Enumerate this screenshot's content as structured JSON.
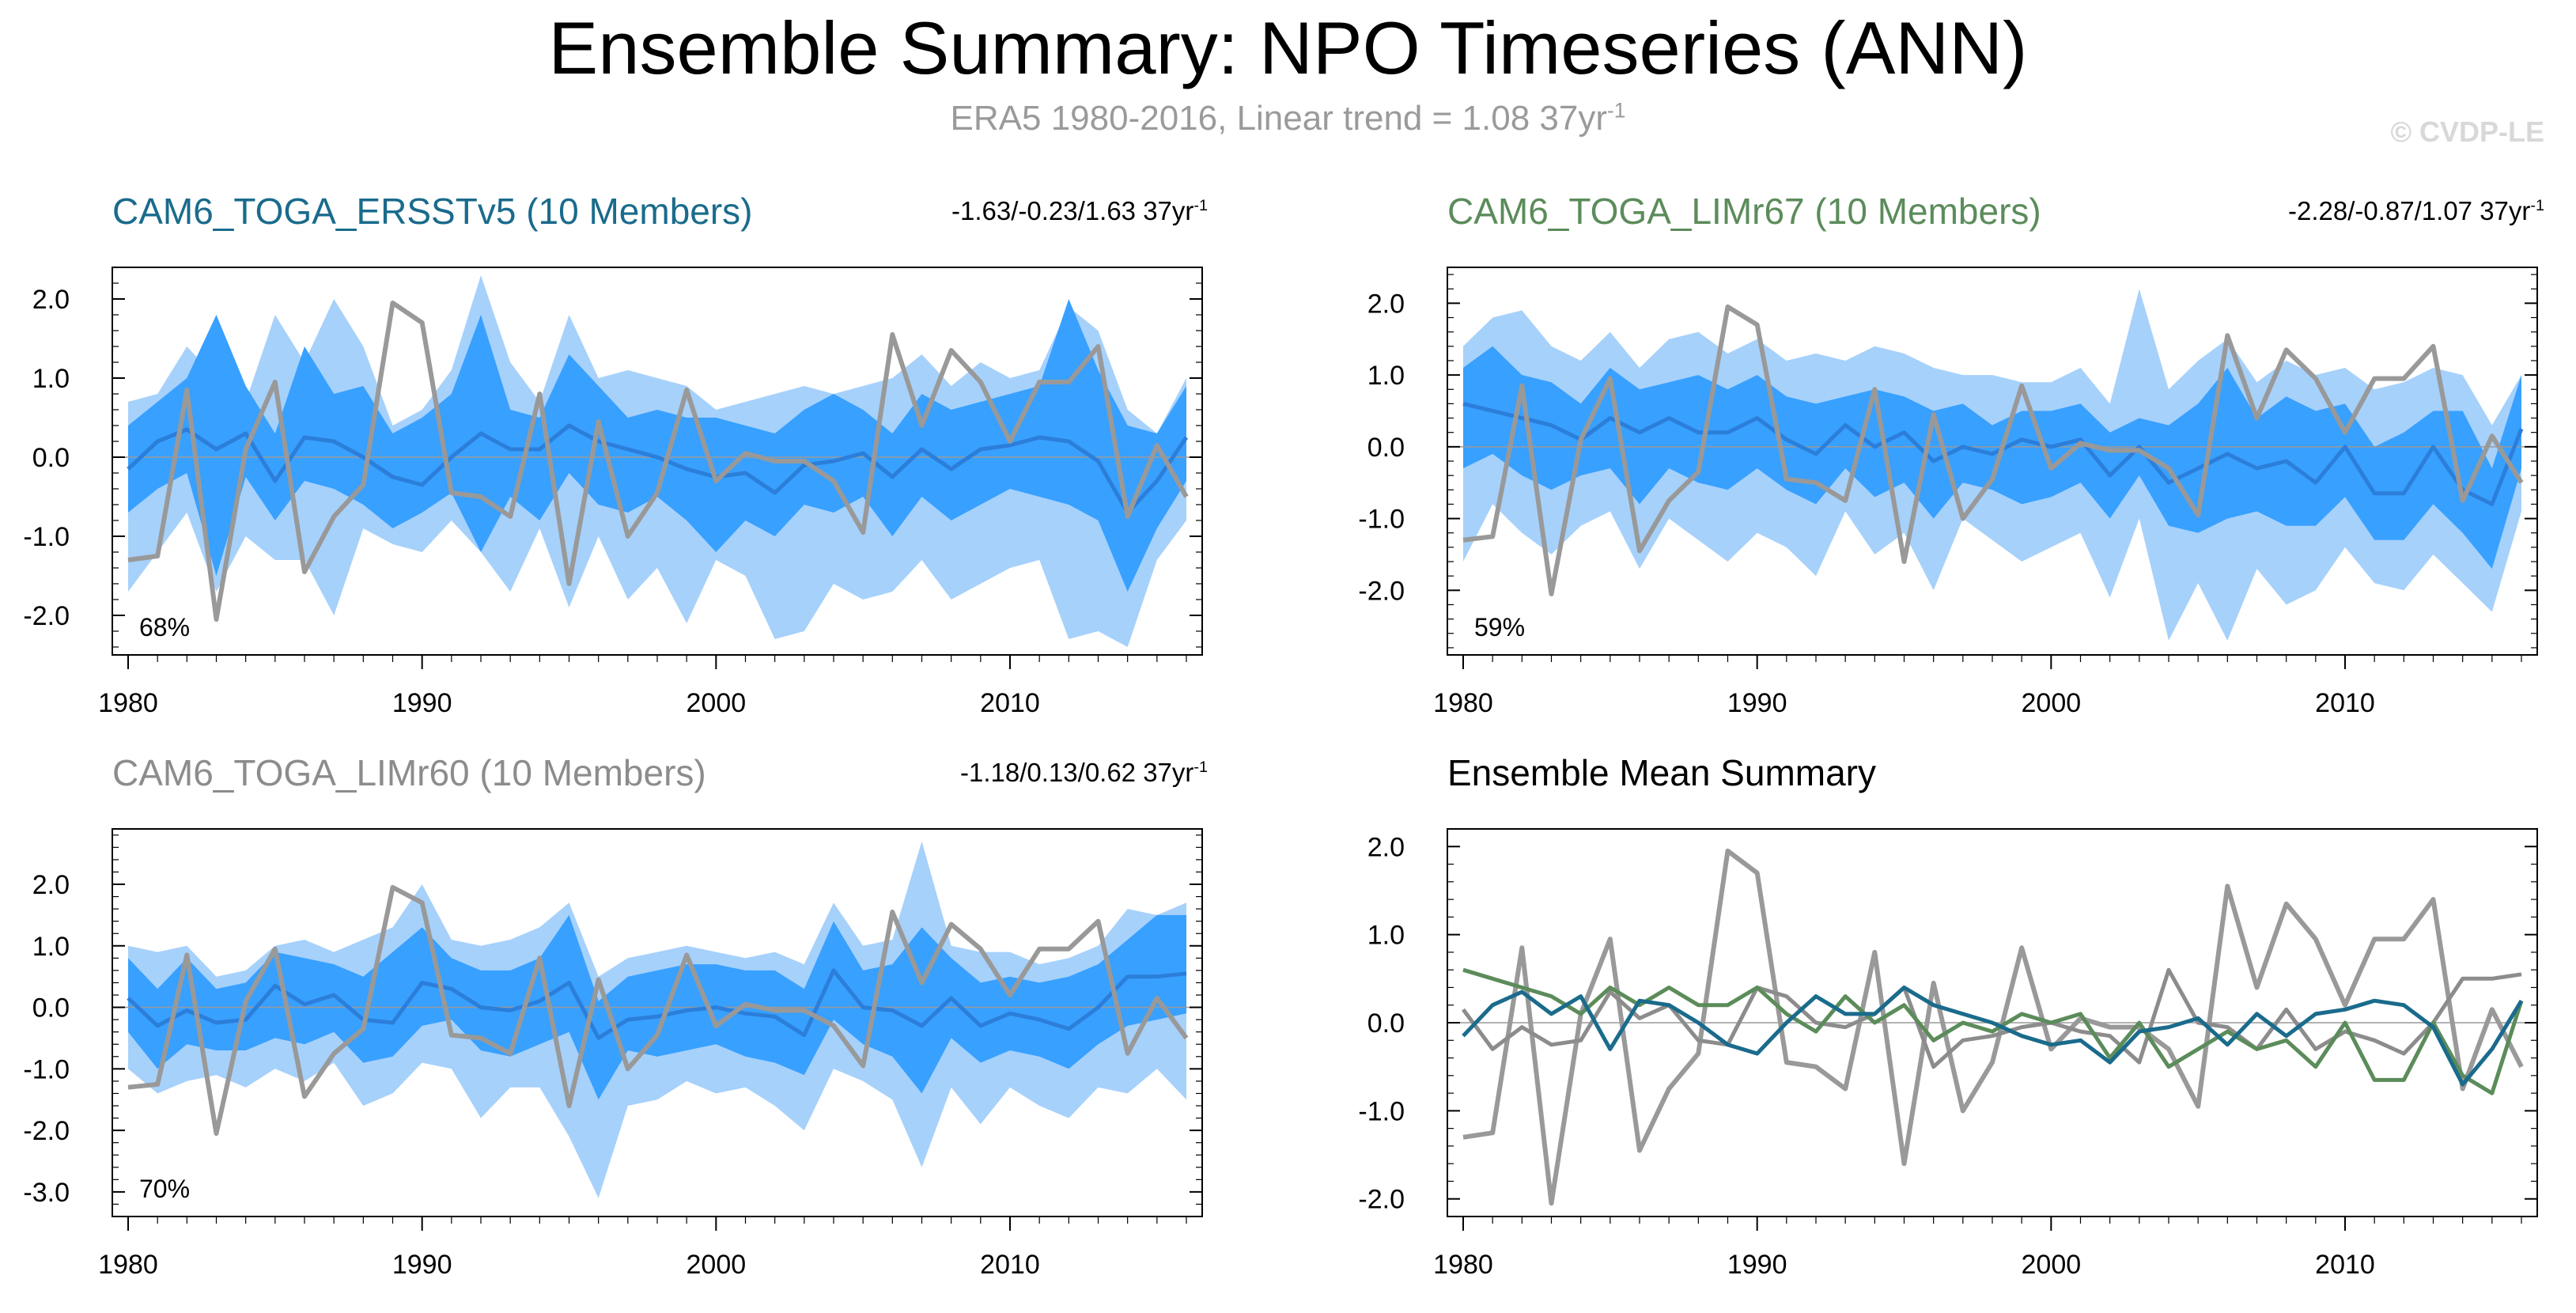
{
  "header": {
    "title": "Ensemble Summary: NPO Timeseries (ANN)",
    "subtitle_main": "ERA5 1980-2016, Linear trend = 1.08 37yr",
    "subtitle_sup": "-1",
    "credit": "© CVDP-LE"
  },
  "colors": {
    "outer_band": "#a6d1fb",
    "inner_band": "#38a0ff",
    "ens_mean_line": "#2b7ed9",
    "obs_line": "#999999",
    "ersst": "#1a6b8c",
    "limr67": "#5b8c5a",
    "limr60": "#8c8c8c"
  },
  "panels": [
    {
      "title": "CAM6_TOGA_ERSSTv5 (10 Members)",
      "trend": "-1.63/-0.23/1.63 37yr",
      "sup": "-1",
      "pct": "68%"
    },
    {
      "title": "CAM6_TOGA_LIMr67 (10 Members)",
      "trend": "-2.28/-0.87/1.07 37yr",
      "sup": "-1",
      "pct": "59%"
    },
    {
      "title": "CAM6_TOGA_LIMr60 (10 Members)",
      "trend": "-1.18/0.13/0.62 37yr",
      "sup": "-1",
      "pct": "70%"
    },
    {
      "title": "Ensemble Mean Summary",
      "trend": "",
      "sup": "",
      "pct": ""
    }
  ],
  "chart_data": [
    {
      "type": "area",
      "title": "CAM6_TOGA_ERSSTv5 (10 Members)",
      "x_start": 1980,
      "x_end": 2016,
      "xlim": [
        1980,
        2016
      ],
      "ylim": [
        -2.5,
        2.4
      ],
      "xticks": [
        "1980",
        "1990",
        "2000",
        "2010"
      ],
      "yticks": [
        "2.0",
        "1.0",
        "0.0",
        "-1.0",
        "-2.0"
      ],
      "ytick_values": [
        2,
        1,
        0,
        -1,
        -2
      ],
      "series": [
        {
          "name": "ERA5",
          "values": [
            -1.3,
            -1.25,
            0.85,
            -2.05,
            0.1,
            0.95,
            -1.45,
            -0.75,
            -0.35,
            1.95,
            1.7,
            -0.45,
            -0.5,
            -0.75,
            0.8,
            -1.6,
            0.45,
            -1.0,
            -0.45,
            0.85,
            -0.3,
            0.05,
            -0.05,
            -0.05,
            -0.3,
            -0.95,
            1.55,
            0.4,
            1.35,
            0.95,
            0.2,
            0.95,
            0.95,
            1.4,
            -0.75,
            0.15,
            -0.5
          ]
        },
        {
          "name": "Ensemble mean",
          "values": [
            -0.15,
            0.2,
            0.35,
            0.1,
            0.3,
            -0.3,
            0.25,
            0.2,
            0.0,
            -0.25,
            -0.35,
            0.0,
            0.3,
            0.1,
            0.1,
            0.4,
            0.2,
            0.1,
            0.0,
            -0.15,
            -0.25,
            -0.2,
            -0.45,
            -0.1,
            -0.05,
            0.05,
            -0.25,
            0.1,
            -0.15,
            0.1,
            0.15,
            0.25,
            0.2,
            -0.05,
            -0.7,
            -0.3,
            0.25
          ]
        },
        {
          "name": "Inner lower",
          "values": [
            -0.7,
            -0.4,
            -0.2,
            -1.5,
            -0.25,
            -0.8,
            -0.3,
            -0.4,
            -0.6,
            -0.9,
            -0.7,
            -0.45,
            -1.2,
            -0.5,
            -0.8,
            -0.2,
            -0.6,
            -0.7,
            -0.5,
            -0.8,
            -1.2,
            -0.8,
            -1.0,
            -0.6,
            -0.7,
            -0.5,
            -1.0,
            -0.5,
            -0.8,
            -0.6,
            -0.4,
            -0.5,
            -0.6,
            -0.8,
            -1.7,
            -0.9,
            -0.3
          ]
        },
        {
          "name": "Inner upper",
          "values": [
            0.4,
            0.7,
            1.0,
            1.8,
            0.9,
            0.3,
            1.4,
            0.8,
            0.9,
            0.3,
            0.5,
            0.8,
            1.8,
            0.6,
            0.5,
            1.3,
            0.9,
            0.5,
            0.6,
            0.5,
            0.5,
            0.4,
            0.3,
            0.6,
            0.8,
            0.6,
            0.3,
            0.8,
            0.6,
            0.7,
            0.8,
            0.9,
            2.0,
            1.1,
            0.4,
            0.3,
            0.9
          ]
        },
        {
          "name": "Outer lower",
          "values": [
            -1.7,
            -1.2,
            -0.7,
            -1.7,
            -1.0,
            -1.3,
            -1.3,
            -2.0,
            -0.9,
            -1.1,
            -1.2,
            -0.8,
            -1.2,
            -1.7,
            -0.9,
            -1.9,
            -1.0,
            -1.8,
            -1.4,
            -2.1,
            -1.3,
            -1.5,
            -2.3,
            -2.2,
            -1.6,
            -1.8,
            -1.7,
            -1.3,
            -1.8,
            -1.6,
            -1.4,
            -1.3,
            -2.3,
            -2.2,
            -2.4,
            -1.3,
            -0.8
          ]
        },
        {
          "name": "Outer upper",
          "values": [
            0.7,
            0.8,
            1.4,
            1.0,
            0.7,
            1.8,
            1.2,
            2.0,
            1.4,
            0.4,
            0.6,
            1.1,
            2.3,
            1.2,
            0.7,
            1.8,
            1.0,
            1.1,
            1.0,
            0.9,
            0.6,
            0.7,
            0.8,
            0.9,
            0.8,
            0.9,
            1.0,
            1.3,
            0.9,
            1.2,
            1.0,
            1.1,
            1.9,
            1.6,
            0.6,
            0.3,
            1.0
          ]
        }
      ]
    },
    {
      "type": "area",
      "title": "CAM6_TOGA_LIMr67 (10 Members)",
      "x_start": 1980,
      "x_end": 2016,
      "xlim": [
        1980,
        2016
      ],
      "ylim": [
        -2.9,
        2.5
      ],
      "xticks": [
        "1980",
        "1990",
        "2000",
        "2010"
      ],
      "yticks": [
        "2.0",
        "1.0",
        "0.0",
        "-1.0",
        "-2.0"
      ],
      "ytick_values": [
        2,
        1,
        0,
        -1,
        -2
      ],
      "series": [
        {
          "name": "ERA5",
          "values": [
            -1.3,
            -1.25,
            0.85,
            -2.05,
            0.1,
            0.95,
            -1.45,
            -0.75,
            -0.35,
            1.95,
            1.7,
            -0.45,
            -0.5,
            -0.75,
            0.8,
            -1.6,
            0.45,
            -1.0,
            -0.45,
            0.85,
            -0.3,
            0.05,
            -0.05,
            -0.05,
            -0.3,
            -0.95,
            1.55,
            0.4,
            1.35,
            0.95,
            0.2,
            0.95,
            0.95,
            1.4,
            -0.75,
            0.15,
            -0.5
          ]
        },
        {
          "name": "Ensemble mean",
          "values": [
            0.6,
            0.5,
            0.4,
            0.3,
            0.1,
            0.4,
            0.2,
            0.4,
            0.2,
            0.2,
            0.4,
            0.1,
            -0.1,
            0.3,
            0.0,
            0.2,
            -0.2,
            0.0,
            -0.1,
            0.1,
            0.0,
            0.1,
            -0.4,
            0.0,
            -0.5,
            -0.3,
            -0.1,
            -0.3,
            -0.2,
            -0.5,
            0.0,
            -0.65,
            -0.65,
            0.0,
            -0.6,
            -0.8,
            0.25
          ]
        },
        {
          "name": "Inner lower",
          "values": [
            -0.3,
            -0.1,
            -0.4,
            -0.6,
            -0.4,
            -0.3,
            -0.8,
            -0.3,
            -0.5,
            -0.6,
            -0.3,
            -0.6,
            -0.8,
            -0.3,
            -0.7,
            -0.5,
            -1.0,
            -0.5,
            -0.6,
            -0.8,
            -0.7,
            -0.5,
            -1.0,
            -0.4,
            -1.1,
            -1.2,
            -1.0,
            -0.9,
            -1.1,
            -1.1,
            -0.7,
            -1.3,
            -1.3,
            -0.8,
            -1.2,
            -1.7,
            -0.3
          ]
        },
        {
          "name": "Inner upper",
          "values": [
            1.1,
            1.4,
            1.0,
            0.9,
            0.6,
            1.1,
            0.8,
            0.9,
            1.0,
            0.8,
            1.0,
            0.7,
            0.6,
            0.7,
            0.8,
            0.7,
            0.5,
            0.6,
            0.3,
            0.5,
            0.5,
            0.6,
            0.2,
            0.4,
            0.3,
            0.6,
            1.1,
            0.4,
            0.7,
            0.5,
            0.6,
            0.0,
            0.2,
            0.5,
            0.5,
            -0.3,
            1.0
          ]
        },
        {
          "name": "Outer lower",
          "values": [
            -1.6,
            -0.8,
            -1.2,
            -1.5,
            -1.1,
            -0.9,
            -1.7,
            -1.0,
            -1.3,
            -1.6,
            -1.2,
            -1.4,
            -1.8,
            -0.9,
            -1.5,
            -1.2,
            -2.0,
            -1.0,
            -1.3,
            -1.6,
            -1.4,
            -1.2,
            -2.1,
            -1.0,
            -2.7,
            -1.9,
            -2.7,
            -1.7,
            -2.2,
            -2.0,
            -1.4,
            -1.9,
            -2.0,
            -1.5,
            -1.9,
            -2.3,
            -0.9
          ]
        },
        {
          "name": "Outer upper",
          "values": [
            1.4,
            1.8,
            1.9,
            1.4,
            1.2,
            1.6,
            1.1,
            1.5,
            1.6,
            1.3,
            1.5,
            1.2,
            1.3,
            1.2,
            1.4,
            1.3,
            1.1,
            1.0,
            1.0,
            0.9,
            0.9,
            1.1,
            0.6,
            2.2,
            0.8,
            1.2,
            1.5,
            0.9,
            1.2,
            1.0,
            1.1,
            0.8,
            0.9,
            1.1,
            1.0,
            0.3,
            1.0
          ]
        }
      ]
    },
    {
      "type": "area",
      "title": "CAM6_TOGA_LIMr60 (10 Members)",
      "x_start": 1980,
      "x_end": 2016,
      "xlim": [
        1980,
        2016
      ],
      "ylim": [
        -3.4,
        2.9
      ],
      "xticks": [
        "1980",
        "1990",
        "2000",
        "2010"
      ],
      "yticks": [
        "2.0",
        "1.0",
        "0.0",
        "-1.0",
        "-2.0",
        "-3.0"
      ],
      "ytick_values": [
        2,
        1,
        0,
        -1,
        -2,
        -3
      ],
      "series": [
        {
          "name": "ERA5",
          "values": [
            -1.3,
            -1.25,
            0.85,
            -2.05,
            0.1,
            0.95,
            -1.45,
            -0.75,
            -0.35,
            1.95,
            1.7,
            -0.45,
            -0.5,
            -0.75,
            0.8,
            -1.6,
            0.45,
            -1.0,
            -0.45,
            0.85,
            -0.3,
            0.05,
            -0.05,
            -0.05,
            -0.3,
            -0.95,
            1.55,
            0.4,
            1.35,
            0.95,
            0.2,
            0.95,
            0.95,
            1.4,
            -0.75,
            0.15,
            -0.5
          ]
        },
        {
          "name": "Ensemble mean",
          "values": [
            0.15,
            -0.3,
            -0.05,
            -0.25,
            -0.2,
            0.35,
            0.05,
            0.2,
            -0.2,
            -0.25,
            0.4,
            0.3,
            0.0,
            -0.05,
            0.1,
            0.4,
            -0.5,
            -0.2,
            -0.15,
            -0.05,
            0.0,
            -0.1,
            -0.15,
            -0.45,
            0.6,
            0.0,
            -0.05,
            -0.3,
            0.15,
            -0.3,
            -0.1,
            -0.2,
            -0.35,
            0.0,
            0.5,
            0.5,
            0.55
          ]
        },
        {
          "name": "Inner lower",
          "values": [
            -0.4,
            -1.0,
            -0.6,
            -0.7,
            -0.7,
            -0.5,
            -0.6,
            -0.4,
            -0.9,
            -0.8,
            -0.3,
            -0.2,
            -0.7,
            -0.8,
            -0.6,
            -0.4,
            -1.5,
            -0.7,
            -0.8,
            -0.7,
            -0.6,
            -0.8,
            -0.9,
            -1.1,
            -0.2,
            -0.6,
            -0.8,
            -1.4,
            -0.5,
            -0.9,
            -0.7,
            -0.8,
            -1.0,
            -0.6,
            -0.3,
            -0.2,
            -0.1
          ]
        },
        {
          "name": "Inner upper",
          "values": [
            0.8,
            0.3,
            0.8,
            0.3,
            0.4,
            0.9,
            0.8,
            0.7,
            0.5,
            0.9,
            1.3,
            0.8,
            0.6,
            0.6,
            0.8,
            1.5,
            0.1,
            0.5,
            0.6,
            0.7,
            0.7,
            0.6,
            0.6,
            0.3,
            1.4,
            0.6,
            0.7,
            1.3,
            0.8,
            0.4,
            0.5,
            0.4,
            0.5,
            0.7,
            1.1,
            1.5,
            1.5
          ]
        },
        {
          "name": "Outer lower",
          "values": [
            -1.0,
            -1.4,
            -1.2,
            -1.1,
            -1.3,
            -1.0,
            -1.2,
            -0.9,
            -1.6,
            -1.4,
            -0.9,
            -1.0,
            -1.8,
            -1.3,
            -1.3,
            -2.1,
            -3.1,
            -1.6,
            -1.5,
            -1.2,
            -1.4,
            -1.3,
            -1.6,
            -2.0,
            -1.0,
            -1.2,
            -1.5,
            -2.6,
            -1.3,
            -1.9,
            -1.3,
            -1.6,
            -1.8,
            -1.3,
            -1.4,
            -1.0,
            -1.5
          ]
        },
        {
          "name": "Outer upper",
          "values": [
            1.0,
            0.9,
            1.0,
            0.5,
            0.6,
            1.0,
            1.1,
            0.9,
            1.1,
            1.3,
            2.0,
            1.1,
            1.0,
            1.1,
            1.3,
            1.7,
            0.5,
            0.8,
            0.9,
            1.0,
            0.9,
            0.8,
            0.9,
            0.7,
            1.7,
            1.0,
            1.1,
            2.7,
            1.0,
            0.9,
            0.9,
            0.7,
            0.8,
            1.0,
            1.6,
            1.5,
            1.7
          ]
        }
      ]
    },
    {
      "type": "line",
      "title": "Ensemble Mean Summary",
      "x_start": 1980,
      "x_end": 2016,
      "xlim": [
        1980,
        2016
      ],
      "ylim": [
        -2.2,
        2.2
      ],
      "xticks": [
        "1980",
        "1990",
        "2000",
        "2010"
      ],
      "yticks": [
        "2.0",
        "1.0",
        "0.0",
        "-1.0",
        "-2.0"
      ],
      "ytick_values": [
        2,
        1,
        0,
        -1,
        -2
      ],
      "series": [
        {
          "name": "ERA5",
          "values": [
            -1.3,
            -1.25,
            0.85,
            -2.05,
            0.1,
            0.95,
            -1.45,
            -0.75,
            -0.35,
            1.95,
            1.7,
            -0.45,
            -0.5,
            -0.75,
            0.8,
            -1.6,
            0.45,
            -1.0,
            -0.45,
            0.85,
            -0.3,
            0.05,
            -0.05,
            -0.05,
            -0.3,
            -0.95,
            1.55,
            0.4,
            1.35,
            0.95,
            0.2,
            0.95,
            0.95,
            1.4,
            -0.75,
            0.15,
            -0.5
          ]
        },
        {
          "name": "CAM6_TOGA_LIMr60",
          "values": [
            0.15,
            -0.3,
            -0.05,
            -0.25,
            -0.2,
            0.35,
            0.05,
            0.2,
            -0.2,
            -0.25,
            0.4,
            0.3,
            0.0,
            -0.05,
            0.1,
            0.4,
            -0.5,
            -0.2,
            -0.15,
            -0.05,
            0.0,
            -0.1,
            -0.15,
            -0.45,
            0.6,
            0.0,
            -0.05,
            -0.3,
            0.15,
            -0.3,
            -0.1,
            -0.2,
            -0.35,
            0.0,
            0.5,
            0.5,
            0.55
          ]
        },
        {
          "name": "CAM6_TOGA_LIMr67",
          "values": [
            0.6,
            0.5,
            0.4,
            0.3,
            0.1,
            0.4,
            0.2,
            0.4,
            0.2,
            0.2,
            0.4,
            0.1,
            -0.1,
            0.3,
            0.0,
            0.2,
            -0.2,
            0.0,
            -0.1,
            0.1,
            0.0,
            0.1,
            -0.4,
            0.0,
            -0.5,
            -0.3,
            -0.1,
            -0.3,
            -0.2,
            -0.5,
            0.0,
            -0.65,
            -0.65,
            0.0,
            -0.6,
            -0.8,
            0.25
          ]
        },
        {
          "name": "CAM6_TOGA_ERSSTv5",
          "values": [
            -0.15,
            0.2,
            0.35,
            0.1,
            0.3,
            -0.3,
            0.25,
            0.2,
            0.0,
            -0.25,
            -0.35,
            0.0,
            0.3,
            0.1,
            0.1,
            0.4,
            0.2,
            0.1,
            0.0,
            -0.15,
            -0.25,
            -0.2,
            -0.45,
            -0.1,
            -0.05,
            0.05,
            -0.25,
            0.1,
            -0.15,
            0.1,
            0.15,
            0.25,
            0.2,
            -0.05,
            -0.7,
            -0.3,
            0.25
          ]
        }
      ]
    }
  ]
}
